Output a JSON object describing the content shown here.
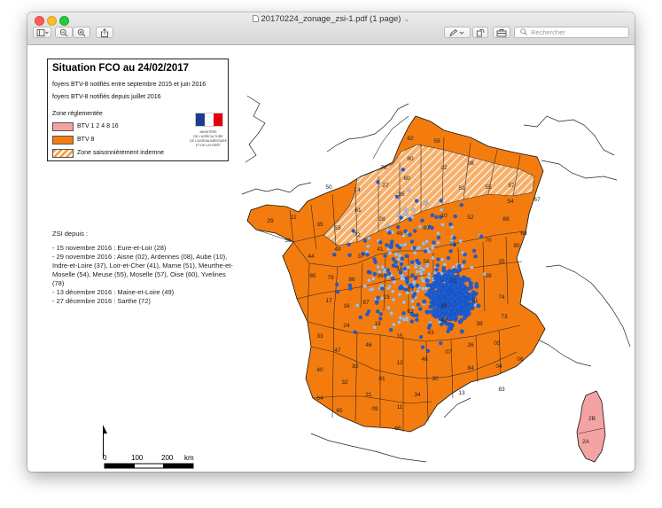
{
  "window": {
    "title": "20170224_zonage_zsi-1.pdf (1 page)",
    "search_placeholder": "Rechercher"
  },
  "legend": {
    "title": "Situation FCO au 24/02/2017",
    "line1": "foyers BTV-8 notifiés entre septembre 2015 et juin 2016",
    "line2": "foyers BTV-8 notifiés depuis juillet 2016",
    "zone_label": "Zone réglementée",
    "items": [
      {
        "label": "BTV 1 2 4 8 16",
        "color": "#f4a3a3"
      },
      {
        "label": "BTV 8",
        "color": "#f47c0f"
      },
      {
        "label": "Zone saisonnièrement indemne",
        "color": "#f6a04a"
      }
    ],
    "logo_text": [
      "MINISTÈRE",
      "DE L'AGRICULTURE",
      "DE L'AGROALIMENTAIRE",
      "ET DE LA FORÊT"
    ]
  },
  "zsi": {
    "heading": "ZSI depuis :",
    "lines": [
      "- 15 novembre 2016 : Eure-et-Loir (28)",
      "- 29 novembre 2016 : Aisne (02), Ardennes (08), Aube (10), Indre-et-Loire (37), Loir-et-Cher (41), Marne (51), Meurthe-et-Moselle (54), Meuse (55), Moselle (57), Oise (60), Yvelines (78)",
      "- 13 décembre 2016 : Maine-et-Loire (49)",
      "- 27 décembre 2016 : Sarthe (72)"
    ]
  },
  "scale": {
    "t0": "0",
    "t1": "100",
    "t2": "200",
    "unit": "km"
  },
  "map": {
    "colors": {
      "btv8": "#f47c0f",
      "btv_multi": "#f4a3a3",
      "outbreak_recent": "#1f5fd6",
      "outbreak_old": "#a9c1dd"
    },
    "dept_labels": [
      {
        "n": "62"
      },
      {
        "n": "59"
      },
      {
        "n": "80"
      },
      {
        "n": "02"
      },
      {
        "n": "08"
      },
      {
        "n": "76"
      },
      {
        "n": "60"
      },
      {
        "n": "50"
      },
      {
        "n": "14"
      },
      {
        "n": "61"
      },
      {
        "n": "27"
      },
      {
        "n": "95"
      },
      {
        "n": "51"
      },
      {
        "n": "55"
      },
      {
        "n": "57"
      },
      {
        "n": "67"
      },
      {
        "n": "54"
      },
      {
        "n": "88"
      },
      {
        "n": "68"
      },
      {
        "n": "29"
      },
      {
        "n": "22"
      },
      {
        "n": "35"
      },
      {
        "n": "53"
      },
      {
        "n": "72"
      },
      {
        "n": "28"
      },
      {
        "n": "45"
      },
      {
        "n": "10"
      },
      {
        "n": "52"
      },
      {
        "n": "56"
      },
      {
        "n": "44"
      },
      {
        "n": "49"
      },
      {
        "n": "37"
      },
      {
        "n": "41"
      },
      {
        "n": "89"
      },
      {
        "n": "21"
      },
      {
        "n": "70"
      },
      {
        "n": "90"
      },
      {
        "n": "25"
      },
      {
        "n": "85"
      },
      {
        "n": "79"
      },
      {
        "n": "86"
      },
      {
        "n": "36"
      },
      {
        "n": "18"
      },
      {
        "n": "58"
      },
      {
        "n": "71"
      },
      {
        "n": "39"
      },
      {
        "n": "17"
      },
      {
        "n": "16"
      },
      {
        "n": "87"
      },
      {
        "n": "23"
      },
      {
        "n": "03"
      },
      {
        "n": "63"
      },
      {
        "n": "69"
      },
      {
        "n": "01"
      },
      {
        "n": "74"
      },
      {
        "n": "73"
      },
      {
        "n": "33"
      },
      {
        "n": "24"
      },
      {
        "n": "19"
      },
      {
        "n": "15"
      },
      {
        "n": "43"
      },
      {
        "n": "42"
      },
      {
        "n": "38"
      },
      {
        "n": "47"
      },
      {
        "n": "46"
      },
      {
        "n": "12"
      },
      {
        "n": "48"
      },
      {
        "n": "07"
      },
      {
        "n": "26"
      },
      {
        "n": "05"
      },
      {
        "n": "40"
      },
      {
        "n": "82"
      },
      {
        "n": "81"
      },
      {
        "n": "30"
      },
      {
        "n": "84"
      },
      {
        "n": "04"
      },
      {
        "n": "06"
      },
      {
        "n": "64"
      },
      {
        "n": "32"
      },
      {
        "n": "31"
      },
      {
        "n": "34"
      },
      {
        "n": "13"
      },
      {
        "n": "83"
      },
      {
        "n": "65"
      },
      {
        "n": "09"
      },
      {
        "n": "11"
      },
      {
        "n": "66"
      },
      {
        "n": "2B"
      },
      {
        "n": "2A"
      }
    ]
  }
}
